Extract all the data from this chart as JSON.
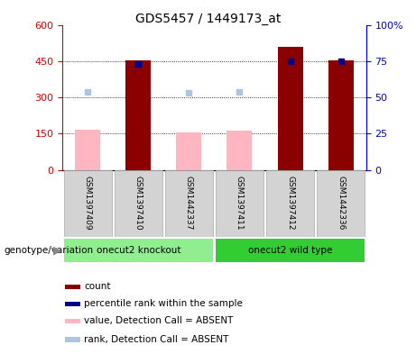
{
  "title": "GDS5457 / 1449173_at",
  "samples": [
    "GSM1397409",
    "GSM1397410",
    "GSM1442337",
    "GSM1397411",
    "GSM1397412",
    "GSM1442336"
  ],
  "count_values": [
    165,
    453,
    155,
    162,
    510,
    453
  ],
  "count_absent": [
    true,
    false,
    true,
    true,
    false,
    false
  ],
  "rank_values": [
    54,
    73,
    53,
    54,
    75,
    75
  ],
  "rank_absent": [
    true,
    false,
    true,
    true,
    false,
    false
  ],
  "ylim_left": [
    0,
    600
  ],
  "ylim_right": [
    0,
    100
  ],
  "yticks_left": [
    0,
    150,
    300,
    450,
    600
  ],
  "ytick_labels_left": [
    "0",
    "150",
    "300",
    "450",
    "600"
  ],
  "yticks_right": [
    0,
    25,
    50,
    75,
    100
  ],
  "ytick_labels_right": [
    "0",
    "25",
    "50",
    "75",
    "100%"
  ],
  "groups": [
    {
      "label": "onecut2 knockout",
      "samples": [
        0,
        1,
        2
      ],
      "color": "#90EE90"
    },
    {
      "label": "onecut2 wild type",
      "samples": [
        3,
        4,
        5
      ],
      "color": "#32CD32"
    }
  ],
  "bar_color_present": "#8B0000",
  "bar_color_absent": "#FFB6C1",
  "dot_color_present": "#00008B",
  "dot_color_absent": "#B0C4DE",
  "bar_width": 0.5,
  "genotype_label": "genotype/variation",
  "legend_items": [
    {
      "color": "#8B0000",
      "label": "count"
    },
    {
      "color": "#00008B",
      "label": "percentile rank within the sample"
    },
    {
      "color": "#FFB6C1",
      "label": "value, Detection Call = ABSENT"
    },
    {
      "color": "#B0C4DE",
      "label": "rank, Detection Call = ABSENT"
    }
  ],
  "tick_color_left": "#cc0000",
  "tick_color_right": "#0000cc",
  "sample_box_color": "#d3d3d3",
  "sample_box_edge": "#aaaaaa"
}
